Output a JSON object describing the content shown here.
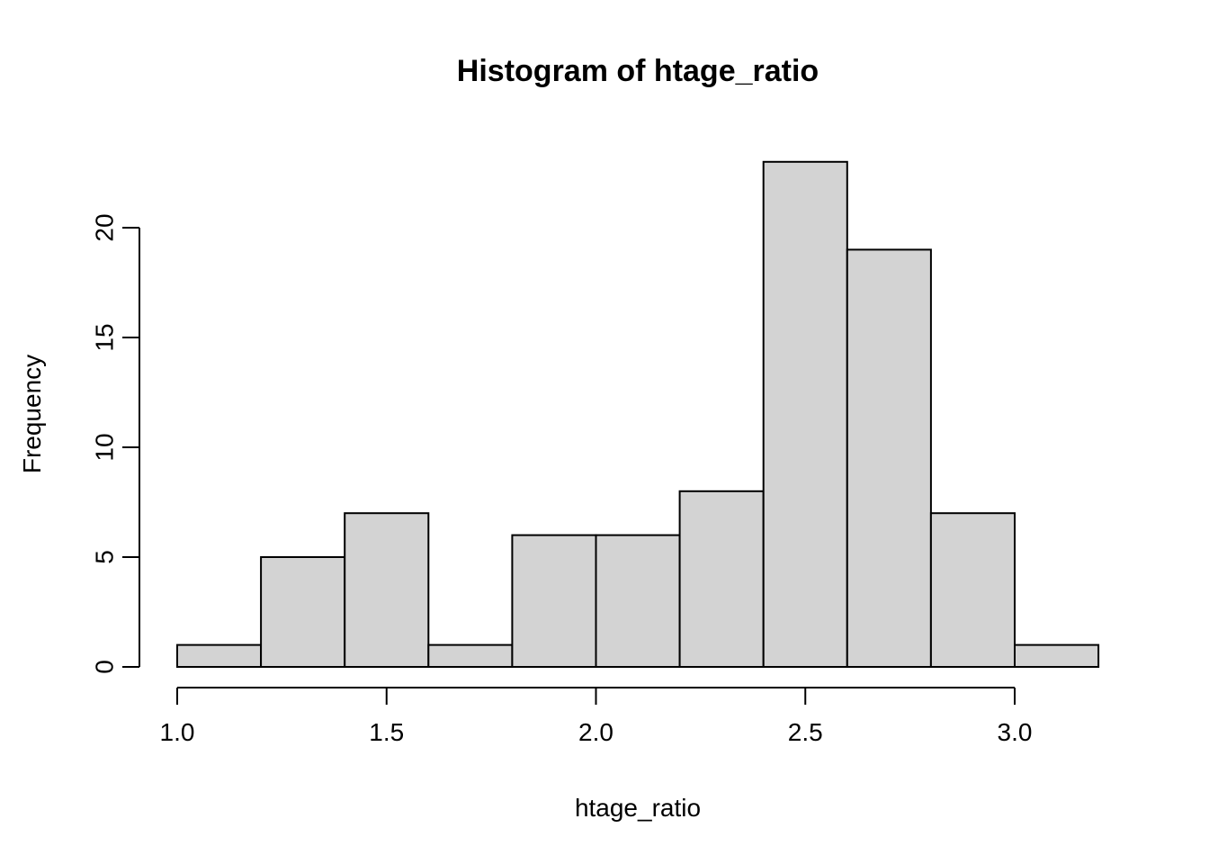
{
  "window": {
    "background": "#ffffff"
  },
  "chart_data": {
    "type": "bar",
    "subtype": "histogram",
    "title": "Histogram of htage_ratio",
    "xlabel": "htage_ratio",
    "ylabel": "Frequency",
    "bin_edges": [
      1.0,
      1.2,
      1.4,
      1.6,
      1.8,
      2.0,
      2.2,
      2.4,
      2.6,
      2.8,
      3.0,
      3.2
    ],
    "counts": [
      1,
      5,
      7,
      1,
      6,
      6,
      8,
      23,
      19,
      7,
      1
    ],
    "x_tick_values": [
      1.0,
      1.5,
      2.0,
      2.5,
      3.0
    ],
    "x_tick_labels": [
      "1.0",
      "1.5",
      "2.0",
      "2.5",
      "3.0"
    ],
    "y_tick_values": [
      0,
      5,
      10,
      15,
      20
    ],
    "y_tick_labels": [
      "0",
      "5",
      "10",
      "15",
      "20"
    ],
    "xlim": [
      1.0,
      3.2
    ],
    "ylim": [
      0,
      23
    ],
    "x_axis_span": [
      1.0,
      3.0
    ],
    "grid": false,
    "legend": null,
    "bar_fill": "#d3d3d3",
    "bar_border": "#000000",
    "axis_color": "#000000",
    "text_color": "#000000",
    "background": "#ffffff"
  }
}
